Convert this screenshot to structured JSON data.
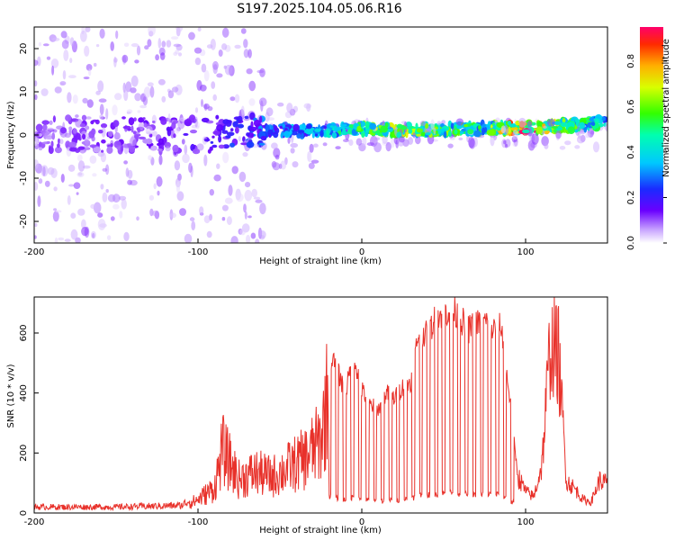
{
  "title": "S197.2025.104.05.06.R16",
  "colors": {
    "heat_low": "#7b00ff",
    "heat_mid": "#00e5ff",
    "heat_high": "#ff1a4a",
    "snr_line": "#e8312a"
  },
  "chart_data": [
    {
      "type": "heatmap",
      "name": "spectrogram",
      "xlabel": "Height of straight line (km)",
      "ylabel": "Frequency (Hz)",
      "xlim": [
        -200,
        150
      ],
      "ylim": [
        -25,
        25
      ],
      "xticks": [
        -200,
        -100,
        0,
        100
      ],
      "yticks": [
        -20,
        -10,
        0,
        10,
        20
      ],
      "ridge": {
        "description": "dominant spectral ridge near 0 Hz, rising toward right",
        "x": [
          -200,
          -150,
          -100,
          -70,
          -50,
          -25,
          0,
          25,
          50,
          75,
          100,
          125,
          150
        ],
        "frequency": [
          0,
          0,
          0,
          0.5,
          1,
          1,
          1.5,
          1,
          1.2,
          1.5,
          1.8,
          2.2,
          3
        ],
        "amplitude": [
          0.1,
          0.12,
          0.15,
          0.25,
          0.3,
          0.35,
          0.55,
          0.6,
          0.55,
          0.5,
          0.9,
          0.55,
          0.45
        ]
      },
      "colorbar": {
        "label": "Normalized spectral amplitude",
        "range": [
          0.0,
          0.95
        ],
        "ticks": [
          "0.0",
          "0.2",
          "0.4",
          "0.6",
          "0.8"
        ]
      }
    },
    {
      "type": "line",
      "name": "snr",
      "xlabel": "Height of straight line (km)",
      "ylabel": "SNR (10 * v/v)",
      "xlim": [
        -200,
        150
      ],
      "ylim": [
        0,
        720
      ],
      "xticks": [
        -200,
        -100,
        0,
        100
      ],
      "yticks": [
        0,
        200,
        400,
        600
      ],
      "series": [
        {
          "name": "SNR",
          "x": [
            -200,
            -150,
            -110,
            -100,
            -90,
            -85,
            -75,
            -65,
            -55,
            -45,
            -35,
            -25,
            -20,
            -15,
            -10,
            -5,
            0,
            5,
            10,
            15,
            20,
            25,
            30,
            35,
            40,
            45,
            50,
            55,
            60,
            65,
            70,
            75,
            80,
            85,
            90,
            95,
            100,
            105,
            110,
            115,
            120,
            125,
            130,
            135,
            140,
            145,
            150
          ],
          "values": [
            20,
            20,
            25,
            60,
            110,
            280,
            150,
            180,
            160,
            200,
            240,
            320,
            560,
            500,
            420,
            550,
            430,
            380,
            360,
            420,
            400,
            440,
            460,
            640,
            620,
            680,
            700,
            710,
            680,
            640,
            660,
            670,
            640,
            650,
            420,
            140,
            80,
            60,
            180,
            620,
            590,
            120,
            90,
            50,
            40,
            120,
            110
          ]
        }
      ]
    }
  ]
}
